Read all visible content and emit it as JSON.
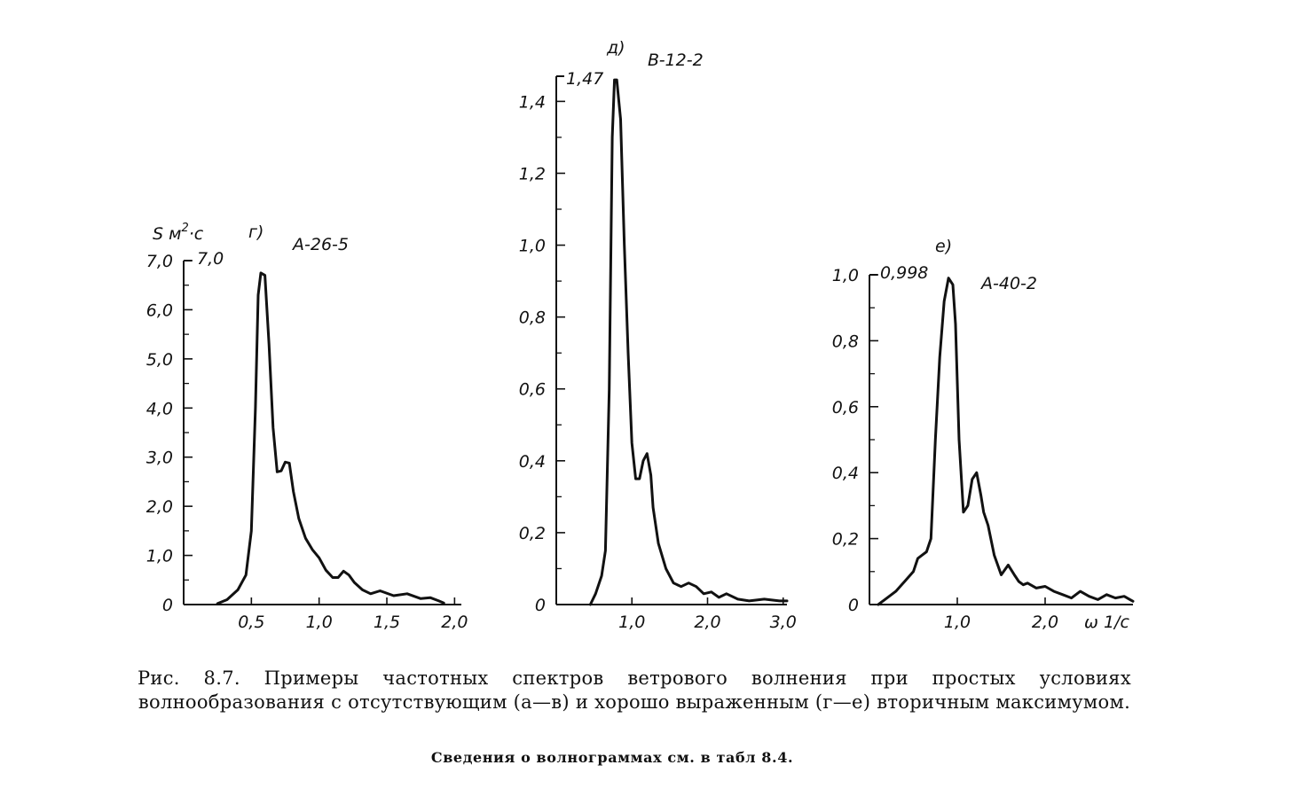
{
  "chart_data": [
    {
      "type": "line",
      "panel_label": "г)",
      "wave_id": "A-26-5",
      "ylabel": "S м²·с",
      "ylabel_main": "S м",
      "ylabel_sup": "2",
      "ylabel_end": "·с",
      "peak_label": "7,0",
      "xlim": [
        0.0,
        2.05
      ],
      "ylim": [
        0,
        7.0
      ],
      "xticks": [
        "0,5",
        "1,0",
        "1,5",
        "2,0"
      ],
      "xtick_values": [
        0.5,
        1.0,
        1.5,
        2.0
      ],
      "yticks": [
        "0",
        "1,0",
        "2,0",
        "3,0",
        "4,0",
        "5,0",
        "6,0",
        "7,0"
      ],
      "ytick_values": [
        0,
        1,
        2,
        3,
        4,
        5,
        6,
        7
      ],
      "series": [
        {
          "x": [
            0.25,
            0.32,
            0.4,
            0.46,
            0.5,
            0.53,
            0.55,
            0.57,
            0.6,
            0.63,
            0.66,
            0.69,
            0.72,
            0.75,
            0.78,
            0.81,
            0.85,
            0.9,
            0.95,
            1.0,
            1.05,
            1.1,
            1.14,
            1.18,
            1.22,
            1.26,
            1.32,
            1.38,
            1.45,
            1.55,
            1.65,
            1.75,
            1.82,
            1.88,
            1.92
          ],
          "y": [
            0.02,
            0.1,
            0.3,
            0.6,
            1.5,
            4.0,
            6.3,
            6.75,
            6.7,
            5.3,
            3.6,
            2.7,
            2.72,
            2.9,
            2.88,
            2.3,
            1.75,
            1.35,
            1.12,
            0.95,
            0.7,
            0.55,
            0.55,
            0.68,
            0.6,
            0.45,
            0.3,
            0.22,
            0.28,
            0.18,
            0.22,
            0.12,
            0.14,
            0.08,
            0.03
          ]
        }
      ]
    },
    {
      "type": "line",
      "panel_label": "д)",
      "wave_id": "B-12-2",
      "peak_label": "1,47",
      "xlim": [
        0.0,
        3.05
      ],
      "ylim": [
        0,
        1.47
      ],
      "xticks": [
        "1,0",
        "2,0",
        "3,0"
      ],
      "xtick_values": [
        1.0,
        2.0,
        3.0
      ],
      "yticks": [
        "0",
        "0,2",
        "0,4",
        "0,6",
        "0,8",
        "1,0",
        "1,2",
        "1,4"
      ],
      "ytick_values": [
        0,
        0.2,
        0.4,
        0.6,
        0.8,
        1.0,
        1.2,
        1.4
      ],
      "series": [
        {
          "x": [
            0.45,
            0.52,
            0.6,
            0.65,
            0.7,
            0.74,
            0.77,
            0.8,
            0.85,
            0.9,
            0.95,
            1.0,
            1.05,
            1.1,
            1.15,
            1.2,
            1.25,
            1.28,
            1.35,
            1.45,
            1.55,
            1.65,
            1.75,
            1.85,
            1.95,
            2.05,
            2.15,
            2.25,
            2.4,
            2.55,
            2.75,
            2.95,
            3.05
          ],
          "y": [
            0.0,
            0.03,
            0.08,
            0.15,
            0.6,
            1.3,
            1.46,
            1.46,
            1.35,
            1.0,
            0.7,
            0.45,
            0.35,
            0.35,
            0.4,
            0.42,
            0.36,
            0.27,
            0.17,
            0.1,
            0.06,
            0.05,
            0.06,
            0.05,
            0.03,
            0.035,
            0.02,
            0.03,
            0.015,
            0.01,
            0.015,
            0.01,
            0.01
          ]
        }
      ]
    },
    {
      "type": "line",
      "panel_label": "е)",
      "wave_id": "A-40-2",
      "peak_label": "0,998",
      "xlabel": "ω 1/с",
      "xlim": [
        0.0,
        3.0
      ],
      "ylim": [
        0,
        1.0
      ],
      "xticks": [
        "1,0",
        "2,0"
      ],
      "xtick_values": [
        1.0,
        2.0
      ],
      "yticks": [
        "0",
        "0,2",
        "0,4",
        "0,6",
        "0,8",
        "1,0"
      ],
      "ytick_values": [
        0,
        0.2,
        0.4,
        0.6,
        0.8,
        1.0
      ],
      "series": [
        {
          "x": [
            0.1,
            0.2,
            0.3,
            0.4,
            0.5,
            0.55,
            0.6,
            0.65,
            0.7,
            0.75,
            0.8,
            0.85,
            0.9,
            0.95,
            0.98,
            1.02,
            1.07,
            1.12,
            1.17,
            1.22,
            1.27,
            1.3,
            1.35,
            1.42,
            1.5,
            1.58,
            1.65,
            1.7,
            1.75,
            1.8,
            1.9,
            2.0,
            2.1,
            2.2,
            2.3,
            2.4,
            2.5,
            2.6,
            2.7,
            2.8,
            2.9,
            3.0
          ],
          "y": [
            0.0,
            0.02,
            0.04,
            0.07,
            0.1,
            0.14,
            0.15,
            0.16,
            0.2,
            0.5,
            0.75,
            0.92,
            0.99,
            0.97,
            0.85,
            0.5,
            0.28,
            0.3,
            0.38,
            0.4,
            0.33,
            0.28,
            0.24,
            0.15,
            0.09,
            0.12,
            0.09,
            0.07,
            0.06,
            0.065,
            0.05,
            0.055,
            0.04,
            0.03,
            0.02,
            0.04,
            0.025,
            0.015,
            0.03,
            0.02,
            0.025,
            0.01
          ]
        }
      ]
    }
  ],
  "caption": "Рис. 8.7. Примеры частотных спектров ветрового волнения при простых условиях волнообразования с отсутствующим (а—в) и хорошо выраженным (г—е) вторичным максимумом.",
  "note": "Сведения о волнограммах см. в табл 8.4."
}
